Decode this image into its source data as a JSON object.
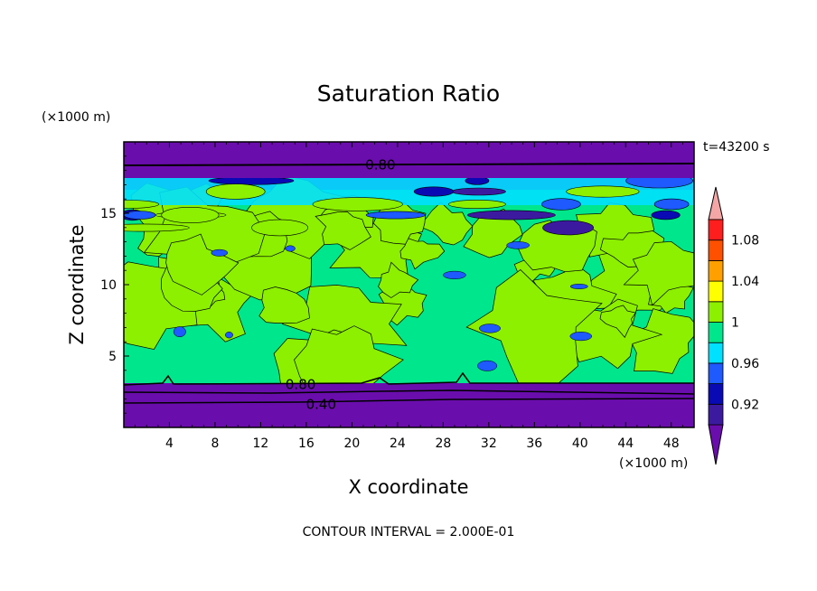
{
  "chart_data": {
    "type": "heatmap",
    "title": "Saturation Ratio",
    "xlabel": "X coordinate",
    "ylabel": "Z coordinate",
    "x_unit": "(×1000 m)",
    "y_unit": "(×1000 m)",
    "time_label": "t=43200 s",
    "footer": "CONTOUR INTERVAL = 2.000E-01",
    "xlim": [
      0,
      50
    ],
    "ylim": [
      0,
      20
    ],
    "x_ticks": [
      4,
      8,
      12,
      16,
      20,
      24,
      28,
      32,
      36,
      40,
      44,
      48
    ],
    "y_ticks": [
      5,
      10,
      15
    ],
    "colorbar": {
      "tick_labels": [
        "0.92",
        "0.96",
        "1",
        "1.04",
        "1.08"
      ],
      "levels": [
        0.9,
        0.92,
        0.94,
        0.96,
        0.98,
        1.0,
        1.02,
        1.04,
        1.06,
        1.08,
        1.1
      ],
      "colors": [
        "#6a0dad",
        "#3c1aa0",
        "#0a0ab4",
        "#1e5aff",
        "#00e0ff",
        "#00e68c",
        "#8cf000",
        "#ffff00",
        "#ffa000",
        "#ff5000",
        "#ff1e1e",
        "#f4a6a6"
      ]
    },
    "contour_labels": [
      {
        "text": "0.80",
        "x": 22.5,
        "y": 18.4
      },
      {
        "text": "0.80",
        "x": 15.5,
        "y": 3.0
      },
      {
        "text": "0.40",
        "x": 17.3,
        "y": 1.6
      }
    ],
    "layers": [
      {
        "z_min": 0.0,
        "z_max": 3.2,
        "value": "< 0.90"
      },
      {
        "z_min": 3.2,
        "z_max": 14.5,
        "value": "0.98 - 1.02 (mostly 1.00 - 1.02)"
      },
      {
        "z_min": 14.5,
        "z_max": 17.6,
        "value": "0.90 - 1.02 (mixed)"
      },
      {
        "z_min": 17.6,
        "z_max": 20.0,
        "value": "< 0.90"
      }
    ]
  }
}
